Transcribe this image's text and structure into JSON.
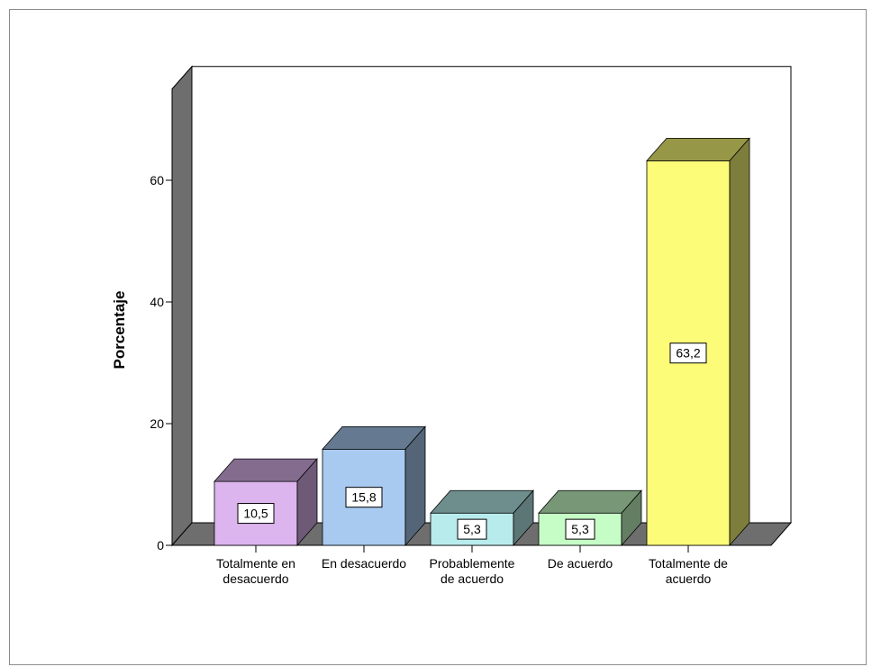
{
  "chart_data": {
    "type": "bar",
    "style": "3d",
    "ylabel": "Porcentaje",
    "xlabel": "",
    "ylim": [
      0,
      75
    ],
    "yticks": [
      0,
      20,
      40,
      60
    ],
    "categories": [
      [
        "Totalmente en",
        "desacuerdo"
      ],
      [
        "En desacuerdo"
      ],
      [
        "Probablemente",
        "de acuerdo"
      ],
      [
        "De acuerdo"
      ],
      [
        "Totalmente de",
        "acuerdo"
      ]
    ],
    "values": [
      10.5,
      15.8,
      5.3,
      5.3,
      63.2
    ],
    "data_labels": [
      "10,5",
      "15,8",
      "5,3",
      "5,3",
      "63,2"
    ],
    "colors": [
      "#dcb4ee",
      "#a8caf0",
      "#b8ecec",
      "#c6fcc6",
      "#fcfc78"
    ],
    "grid": false,
    "legend": "none"
  }
}
